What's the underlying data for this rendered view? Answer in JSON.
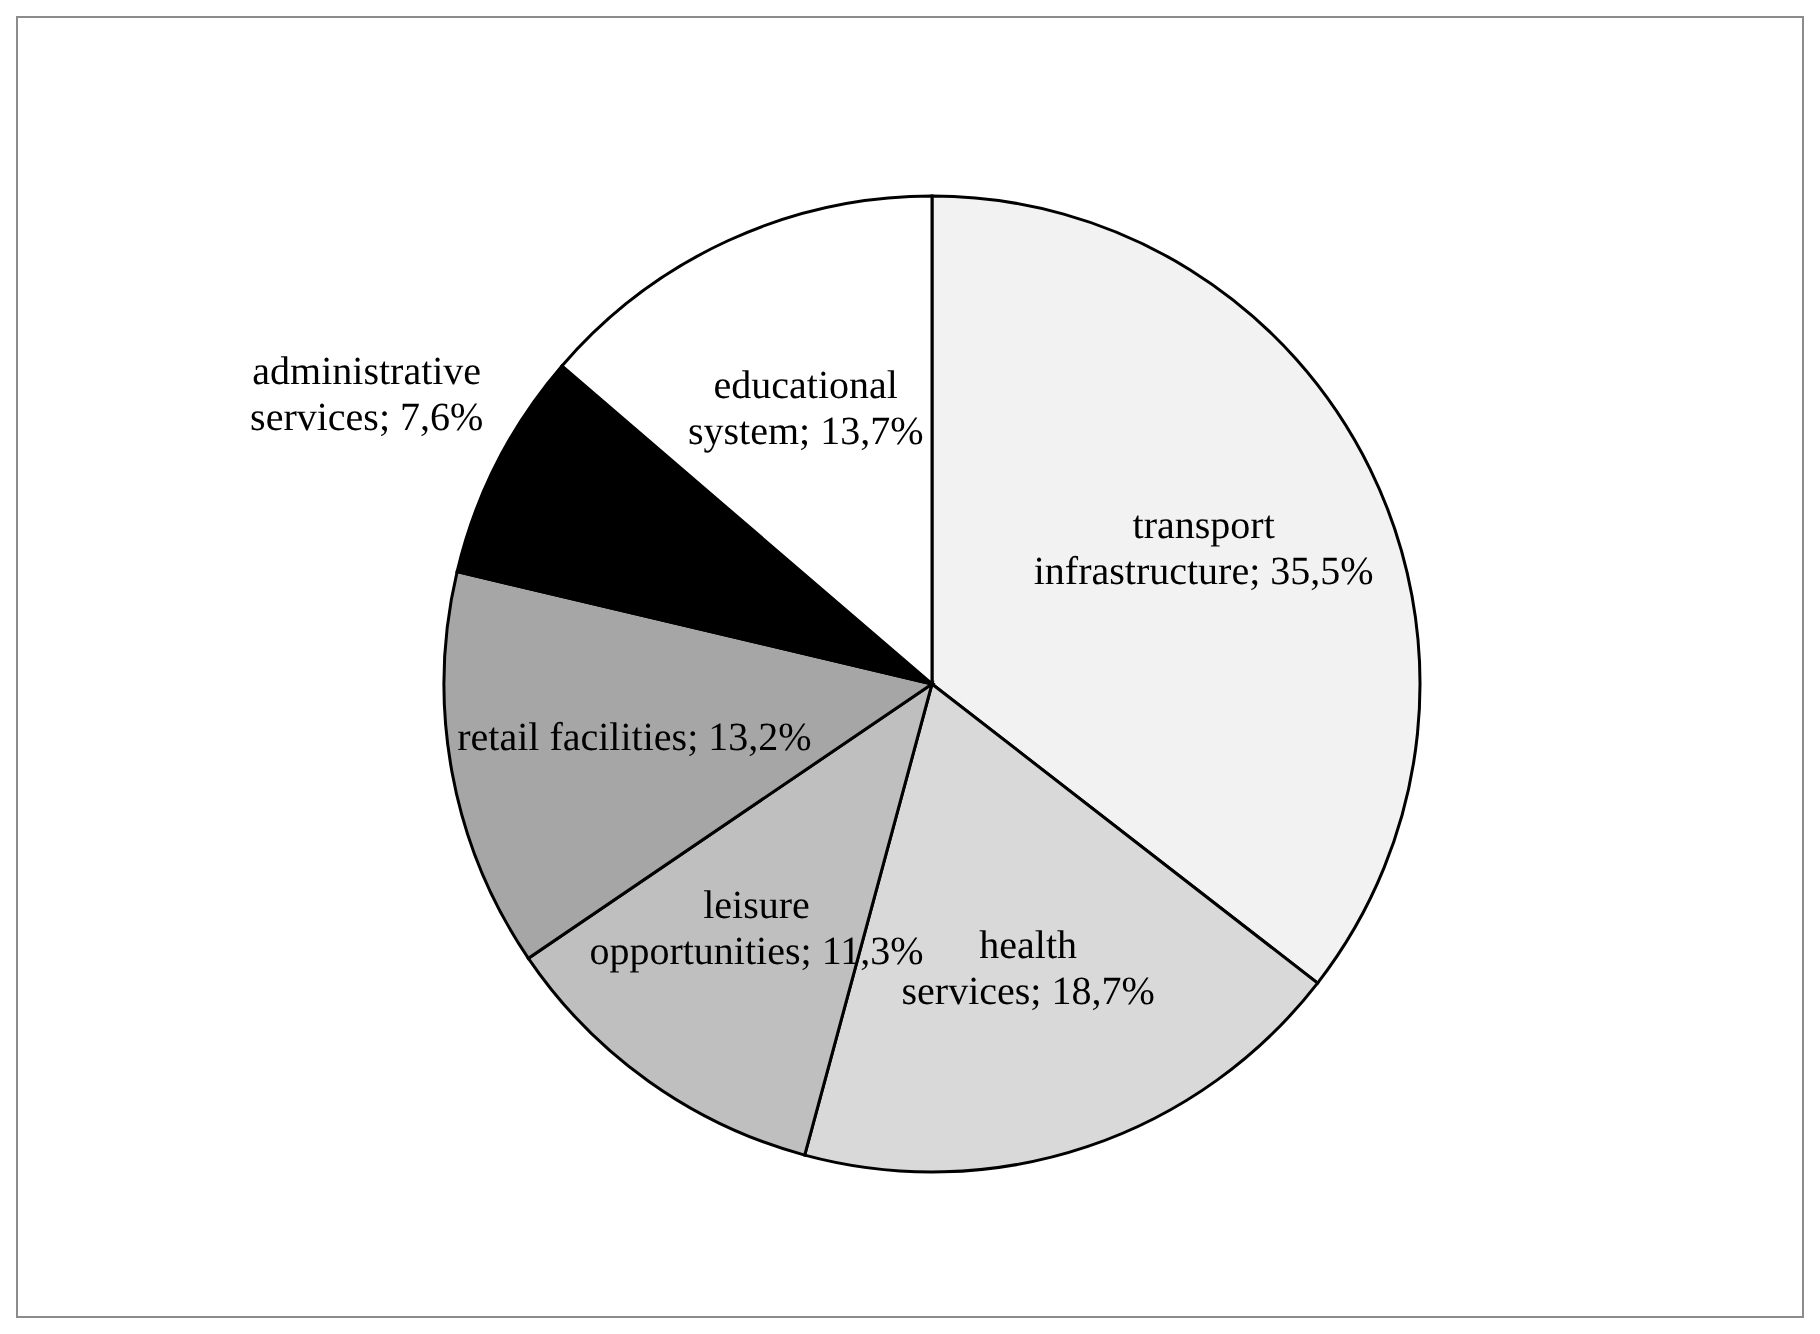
{
  "chart_data": {
    "type": "pie",
    "categories": [
      "transport infrastructure",
      "health services",
      "leisure opportunities",
      "retail facilities",
      "administrative services",
      "educational system"
    ],
    "values": [
      35.5,
      18.7,
      11.3,
      13.2,
      7.6,
      13.7
    ],
    "value_labels": [
      "35,5%",
      "18,7%",
      "11,3%",
      "13,2%",
      "7,6%",
      "13,7%"
    ],
    "colors": [
      "#f2f2f2",
      "#d9d9d9",
      "#bfbfbf",
      "#a6a6a6",
      "#000000",
      "#ffffff"
    ],
    "legend": false
  }
}
